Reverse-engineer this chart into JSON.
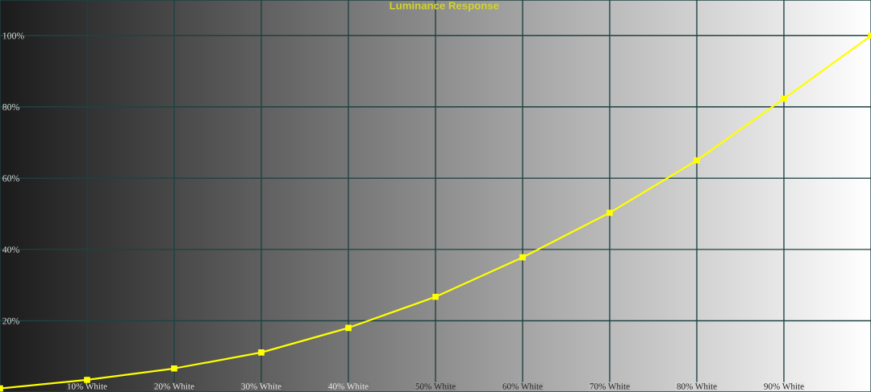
{
  "chart_data": {
    "type": "line",
    "title": "Luminance Response",
    "x": [
      0,
      10,
      20,
      30,
      40,
      50,
      60,
      70,
      80,
      90,
      100
    ],
    "series": [
      {
        "color": "#ffff00",
        "values": [
          1,
          3.4,
          6.6,
          11.1,
          18,
          26.7,
          37.8,
          50.3,
          65,
          82.3,
          100
        ]
      }
    ],
    "xlim": [
      0,
      100
    ],
    "xticks": [
      {
        "value": 10,
        "label": "10% White"
      },
      {
        "value": 20,
        "label": "20% White"
      },
      {
        "value": 30,
        "label": "30% White"
      },
      {
        "value": 40,
        "label": "40% White"
      },
      {
        "value": 50,
        "label": "50% White"
      },
      {
        "value": 60,
        "label": "60% White"
      },
      {
        "value": 70,
        "label": "70% White"
      },
      {
        "value": 80,
        "label": "80% White"
      },
      {
        "value": 90,
        "label": "90% White"
      }
    ],
    "ylim": [
      0,
      110
    ],
    "yticks": [
      {
        "value": 20,
        "label": "20%"
      },
      {
        "value": 40,
        "label": "40%"
      },
      {
        "value": 60,
        "label": "60%"
      },
      {
        "value": 80,
        "label": "80%"
      },
      {
        "value": 100,
        "label": "100%"
      }
    ],
    "grid": true,
    "marker": "square",
    "line_style": "solid"
  }
}
